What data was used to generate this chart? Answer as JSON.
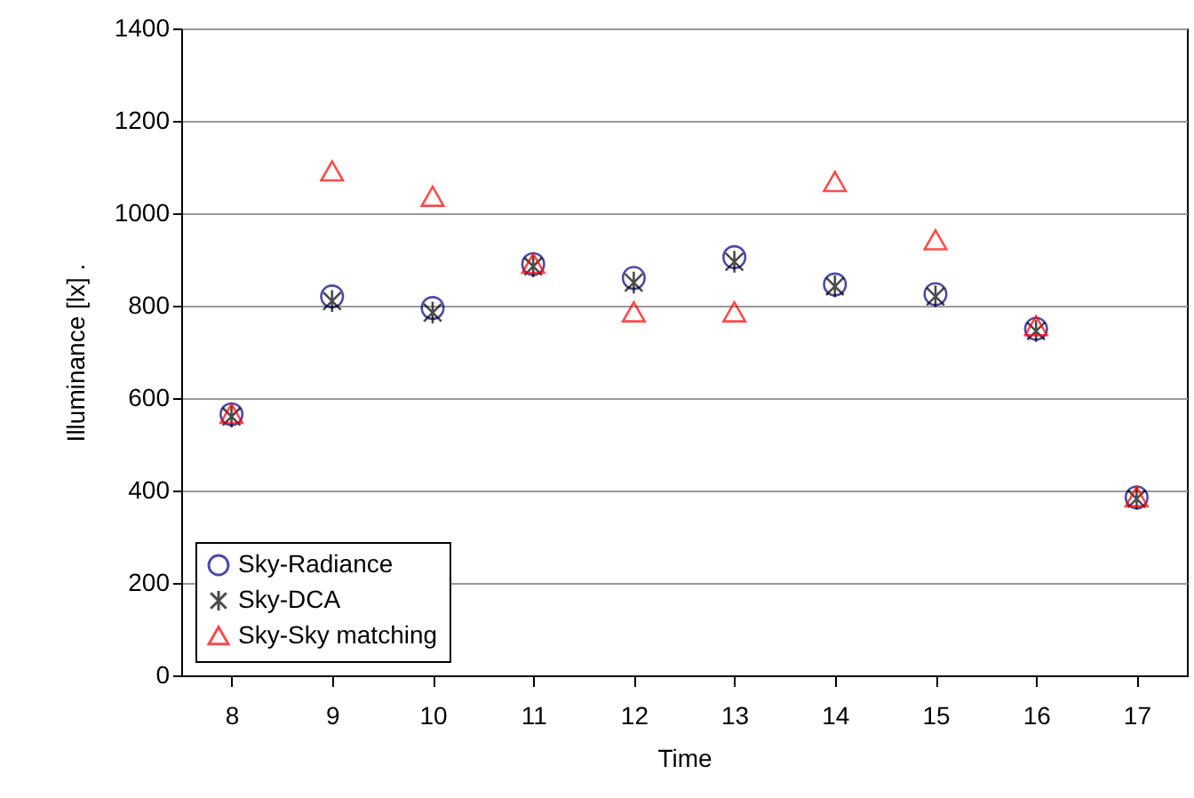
{
  "chart_data": {
    "type": "scatter",
    "xlabel": "Time",
    "ylabel": "Illuminance [lx]        .",
    "categories": [
      "8",
      "9",
      "10",
      "11",
      "12",
      "13",
      "14",
      "15",
      "16",
      "17"
    ],
    "series": [
      {
        "name": "Sky-Radiance",
        "color": "#000080",
        "marker": "circle",
        "values": [
          565,
          820,
          795,
          890,
          860,
          905,
          846,
          825,
          750,
          385
        ]
      },
      {
        "name": "Sky-DCA",
        "color": "#000000",
        "marker": "cross",
        "values": [
          560,
          810,
          785,
          885,
          850,
          895,
          842,
          820,
          745,
          382
        ]
      },
      {
        "name": "Sky-Sky matching",
        "color": "#ff0000",
        "marker": "triangle",
        "values": [
          565,
          1090,
          1035,
          890,
          785,
          785,
          1067,
          941,
          755,
          385
        ]
      }
    ],
    "ylim": [
      0,
      1400
    ],
    "yticks": [
      0,
      200,
      400,
      600,
      800,
      1000,
      1200,
      1400
    ],
    "grid": "y",
    "legend": "bottom left"
  }
}
